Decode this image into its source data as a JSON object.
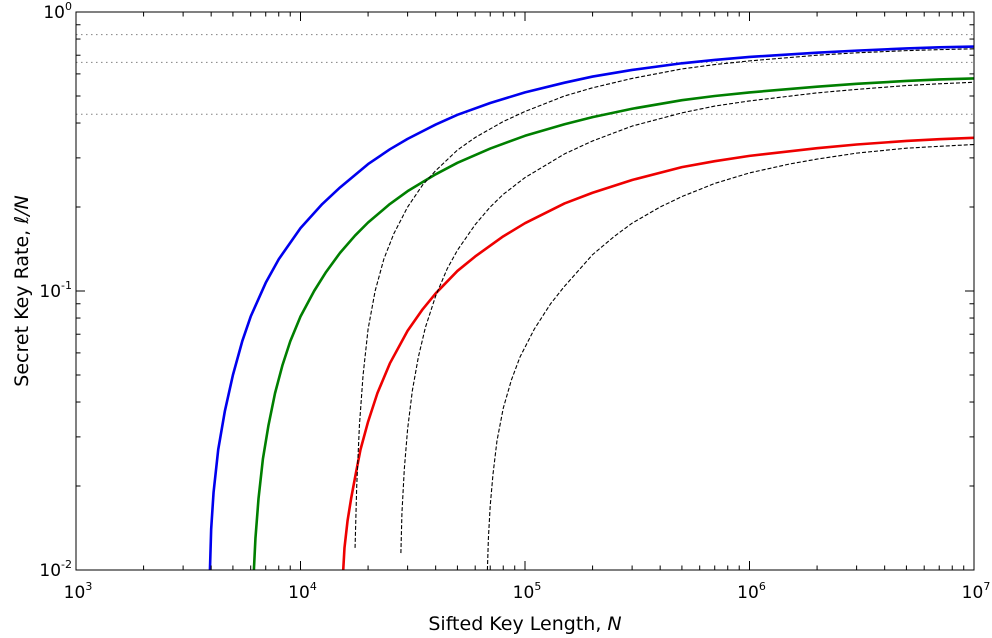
{
  "chart_data": {
    "type": "line",
    "xlabel_text": "Sifted Key Length, ",
    "xlabel_var": "N",
    "ylabel_text": "Secret Key Rate, ",
    "ylabel_var": "ℓ/N",
    "xscale": "log",
    "yscale": "log",
    "xlim": [
      1000,
      10000000
    ],
    "ylim": [
      0.01,
      1
    ],
    "grid": false,
    "xticks": [
      {
        "value": 1000,
        "base": "10",
        "exp": "3"
      },
      {
        "value": 10000,
        "base": "10",
        "exp": "4"
      },
      {
        "value": 100000,
        "base": "10",
        "exp": "5"
      },
      {
        "value": 1000000,
        "base": "10",
        "exp": "6"
      },
      {
        "value": 10000000,
        "base": "10",
        "exp": "7"
      }
    ],
    "yticks": [
      {
        "value": 0.01,
        "base": "10",
        "exp": "-2"
      },
      {
        "value": 0.1,
        "base": "10",
        "exp": "-1"
      },
      {
        "value": 1,
        "base": "10",
        "exp": "0"
      }
    ],
    "hlines": [
      {
        "y": 0.83,
        "style": "dotted",
        "color": "#808080"
      },
      {
        "y": 0.66,
        "style": "dotted",
        "color": "#808080"
      },
      {
        "y": 0.43,
        "style": "dotted",
        "color": "#808080"
      }
    ],
    "series": [
      {
        "color": "#0000ee",
        "style": "solid",
        "x": [
          3950,
          4000,
          4100,
          4300,
          4600,
          5000,
          5500,
          6000,
          7000,
          8000,
          10000,
          12500,
          15000,
          20000,
          25000,
          30000,
          40000,
          50000,
          70000,
          100000,
          150000,
          200000,
          300000,
          500000,
          700000,
          1000000,
          2000000,
          3000000,
          5000000,
          7000000,
          10000000
        ],
        "y": [
          0.01,
          0.014,
          0.019,
          0.027,
          0.037,
          0.05,
          0.066,
          0.081,
          0.107,
          0.13,
          0.168,
          0.205,
          0.235,
          0.285,
          0.322,
          0.351,
          0.395,
          0.428,
          0.472,
          0.515,
          0.558,
          0.587,
          0.62,
          0.655,
          0.673,
          0.69,
          0.715,
          0.727,
          0.74,
          0.747,
          0.752
        ]
      },
      {
        "color": "#007f00",
        "style": "solid",
        "x": [
          6200,
          6300,
          6500,
          6800,
          7200,
          7700,
          8300,
          9000,
          10000,
          11500,
          13000,
          15000,
          17500,
          20000,
          25000,
          30000,
          40000,
          50000,
          70000,
          100000,
          150000,
          200000,
          300000,
          500000,
          700000,
          1000000,
          2000000,
          3000000,
          5000000,
          7000000,
          10000000
        ],
        "y": [
          0.01,
          0.013,
          0.018,
          0.025,
          0.033,
          0.043,
          0.054,
          0.066,
          0.081,
          0.1,
          0.117,
          0.137,
          0.158,
          0.176,
          0.205,
          0.228,
          0.262,
          0.288,
          0.324,
          0.36,
          0.396,
          0.42,
          0.45,
          0.483,
          0.5,
          0.515,
          0.54,
          0.553,
          0.566,
          0.573,
          0.578
        ]
      },
      {
        "color": "#ee0000",
        "style": "solid",
        "x": [
          15500,
          15700,
          16200,
          16800,
          17600,
          18500,
          20000,
          22000,
          25000,
          30000,
          35000,
          40000,
          50000,
          60000,
          80000,
          100000,
          150000,
          200000,
          300000,
          500000,
          700000,
          1000000,
          2000000,
          3000000,
          5000000,
          7000000,
          10000000
        ],
        "y": [
          0.01,
          0.012,
          0.015,
          0.018,
          0.022,
          0.027,
          0.034,
          0.043,
          0.055,
          0.072,
          0.086,
          0.098,
          0.118,
          0.133,
          0.157,
          0.175,
          0.206,
          0.225,
          0.25,
          0.278,
          0.292,
          0.305,
          0.325,
          0.335,
          0.345,
          0.35,
          0.354
        ]
      },
      {
        "color": "#000000",
        "style": "dashed",
        "x": [
          17500,
          17800,
          18300,
          19000,
          20000,
          21500,
          23500,
          26000,
          30000,
          35000,
          40000,
          50000,
          60000,
          80000,
          100000,
          150000,
          200000,
          300000,
          500000,
          700000,
          1000000,
          2000000,
          3000000,
          5000000,
          7000000,
          10000000
        ],
        "y": [
          0.012,
          0.02,
          0.033,
          0.05,
          0.073,
          0.1,
          0.13,
          0.16,
          0.2,
          0.24,
          0.27,
          0.32,
          0.355,
          0.405,
          0.44,
          0.5,
          0.535,
          0.578,
          0.625,
          0.648,
          0.668,
          0.7,
          0.714,
          0.727,
          0.733,
          0.738
        ]
      },
      {
        "color": "#000000",
        "style": "dashed",
        "x": [
          28000,
          28300,
          29000,
          30000,
          31500,
          33500,
          36000,
          40000,
          45000,
          50000,
          60000,
          70000,
          80000,
          100000,
          150000,
          200000,
          300000,
          500000,
          700000,
          1000000,
          2000000,
          3000000,
          5000000,
          7000000,
          10000000
        ],
        "y": [
          0.0115,
          0.016,
          0.023,
          0.032,
          0.044,
          0.058,
          0.074,
          0.096,
          0.12,
          0.14,
          0.173,
          0.2,
          0.222,
          0.255,
          0.31,
          0.345,
          0.39,
          0.435,
          0.46,
          0.48,
          0.513,
          0.528,
          0.545,
          0.553,
          0.56
        ]
      },
      {
        "color": "#000000",
        "style": "dashed",
        "x": [
          68000,
          68700,
          70000,
          72000,
          75000,
          80000,
          87000,
          95000,
          110000,
          130000,
          150000,
          200000,
          250000,
          300000,
          400000,
          500000,
          700000,
          1000000,
          1500000,
          2000000,
          3000000,
          5000000,
          7000000,
          10000000
        ],
        "y": [
          0.01,
          0.013,
          0.017,
          0.022,
          0.029,
          0.038,
          0.048,
          0.058,
          0.073,
          0.09,
          0.104,
          0.135,
          0.157,
          0.175,
          0.2,
          0.218,
          0.243,
          0.265,
          0.285,
          0.297,
          0.312,
          0.325,
          0.33,
          0.335
        ]
      }
    ]
  }
}
